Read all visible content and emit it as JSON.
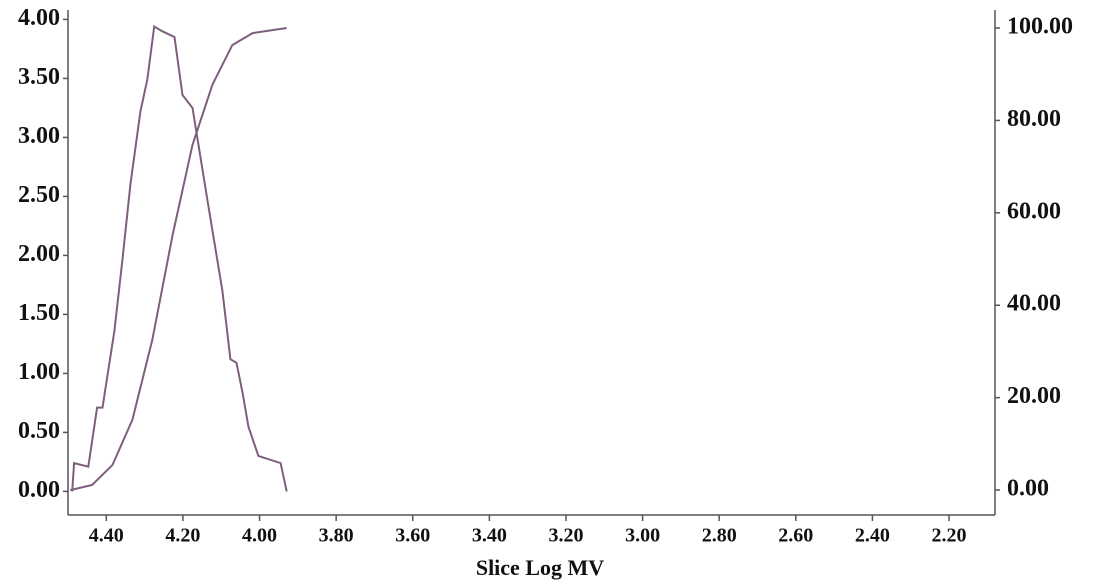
{
  "chart_data": {
    "type": "line",
    "x_label": "Slice Log MV",
    "xlim": [
      4.5,
      2.08
    ],
    "ylim": [
      -0.2,
      4.08
    ],
    "y2lim": [
      -5.4,
      103.9
    ],
    "xticks": [
      {
        "value": 4.4,
        "label": "4.40"
      },
      {
        "value": 4.2,
        "label": "4.20"
      },
      {
        "value": 4.0,
        "label": "4.00"
      },
      {
        "value": 3.8,
        "label": "3.80"
      },
      {
        "value": 3.6,
        "label": "3.60"
      },
      {
        "value": 3.4,
        "label": "3.40"
      },
      {
        "value": 3.2,
        "label": "3.20"
      },
      {
        "value": 3.0,
        "label": "3.00"
      },
      {
        "value": 2.8,
        "label": "2.80"
      },
      {
        "value": 2.6,
        "label": "2.60"
      },
      {
        "value": 2.4,
        "label": "2.40"
      },
      {
        "value": 2.2,
        "label": "2.20"
      }
    ],
    "yticks": [
      {
        "value": 0,
        "label": "0.00"
      },
      {
        "value": 0.5,
        "label": "0.50"
      },
      {
        "value": 1.0,
        "label": "1.00"
      },
      {
        "value": 1.5,
        "label": "1.50"
      },
      {
        "value": 2.0,
        "label": "2.00"
      },
      {
        "value": 2.5,
        "label": "2.50"
      },
      {
        "value": 3.0,
        "label": "3.00"
      },
      {
        "value": 3.5,
        "label": "3.50"
      },
      {
        "value": 4.0,
        "label": "4.00"
      }
    ],
    "y2ticks": [
      {
        "value": 0,
        "label": "0.00"
      },
      {
        "value": 20,
        "label": "20.00"
      },
      {
        "value": 40,
        "label": "40.00"
      },
      {
        "value": 60,
        "label": "60.00"
      },
      {
        "value": 80,
        "label": "80.00"
      },
      {
        "value": 100,
        "label": "100.00"
      }
    ],
    "series": [
      {
        "color": "#7d5f7d",
        "x": [
          4.489,
          4.484,
          4.447,
          4.424,
          4.41,
          4.379,
          4.358,
          4.337,
          4.311,
          4.293,
          4.275,
          4.254,
          4.222,
          4.201,
          4.175,
          4.136,
          4.097,
          4.076,
          4.06,
          4.044,
          4.029,
          4.003,
          3.945,
          3.929
        ],
        "values": [
          0,
          0.24,
          0.21,
          0.71,
          0.71,
          1.36,
          1.96,
          2.6,
          3.22,
          3.49,
          3.94,
          3.9,
          3.85,
          3.36,
          3.25,
          2.47,
          1.7,
          1.12,
          1.09,
          0.83,
          0.55,
          0.3,
          0.24,
          0
        ]
      },
      {
        "color": "#7d5f7d",
        "axis": "y2",
        "x": [
          4.494,
          4.437,
          4.384,
          4.332,
          4.28,
          4.227,
          4.175,
          4.123,
          4.071,
          4.018,
          3.929
        ],
        "values": [
          0,
          1.1,
          5.4,
          15.2,
          32.5,
          55.2,
          74.7,
          87.7,
          96.3,
          98.9,
          100
        ]
      }
    ]
  }
}
